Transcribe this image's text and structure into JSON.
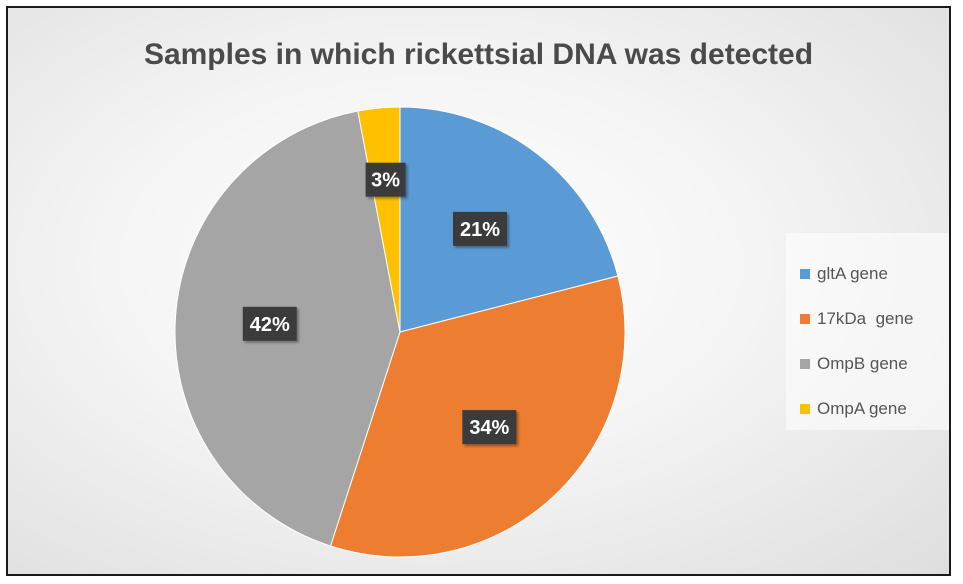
{
  "chart_data": {
    "type": "pie",
    "title": "Samples in which rickettsial DNA was detected",
    "categories": [
      "gltA gene",
      "17kDa  gene",
      "OmpB gene",
      "OmpA gene"
    ],
    "values": [
      21,
      34,
      42,
      3
    ],
    "labels": [
      "21%",
      "34%",
      "42%",
      "3%"
    ],
    "colors": [
      "#5b9bd5",
      "#ed7d31",
      "#a5a5a5",
      "#ffc000"
    ],
    "start_angle_deg": 0,
    "direction": "clockwise",
    "legend_position": "right"
  }
}
